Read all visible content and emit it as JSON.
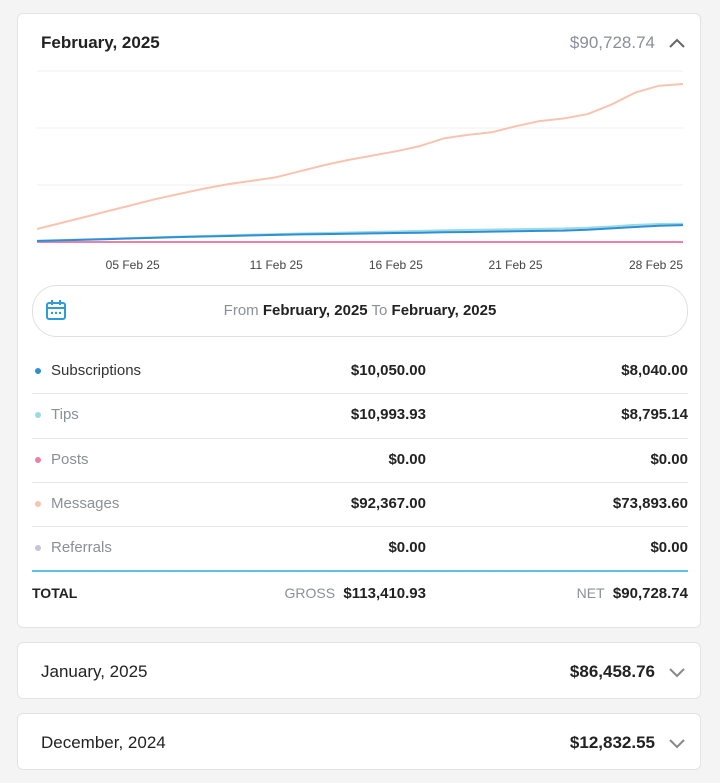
{
  "chart_data": {
    "type": "line",
    "categories": [
      null,
      null,
      null,
      null,
      "05 Feb 25",
      null,
      null,
      null,
      null,
      null,
      "11 Feb 25",
      null,
      null,
      null,
      null,
      "16 Feb 25",
      null,
      null,
      null,
      null,
      "21 Feb 25",
      null,
      null,
      null,
      null,
      null,
      null,
      "28 Feb 25"
    ],
    "series": [
      {
        "name": "Subscriptions",
        "color": "#2e8fd6",
        "values": [
          600,
          900,
          1300,
          1700,
          2100,
          2500,
          2900,
          3200,
          3500,
          3800,
          4100,
          4400,
          4600,
          4800,
          5000,
          5200,
          5400,
          5600,
          5800,
          6000,
          6200,
          6400,
          6600,
          7100,
          7900,
          8700,
          9400,
          9800
        ]
      },
      {
        "name": "Tips",
        "color": "#9adbe3",
        "values": [
          700,
          1100,
          1500,
          1900,
          2300,
          2700,
          3100,
          3500,
          3900,
          4300,
          4600,
          4900,
          5200,
          5500,
          5800,
          6100,
          6400,
          6700,
          7000,
          7200,
          7400,
          7600,
          7800,
          8200,
          9000,
          9900,
          10400,
          10600
        ]
      },
      {
        "name": "Posts",
        "color": "#ef7fa3",
        "values": [
          0,
          0,
          0,
          0,
          0,
          0,
          0,
          0,
          0,
          0,
          0,
          0,
          0,
          0,
          0,
          0,
          0,
          0,
          0,
          0,
          0,
          0,
          0,
          0,
          0,
          0,
          0,
          0
        ]
      },
      {
        "name": "Messages",
        "color": "#f8c4b0",
        "values": [
          7500,
          11000,
          14500,
          18000,
          21500,
          25000,
          28000,
          31000,
          33500,
          35500,
          37500,
          41000,
          44500,
          47500,
          50000,
          52500,
          55500,
          60000,
          62000,
          63500,
          67000,
          70000,
          71500,
          74000,
          79500,
          86500,
          90500,
          91500
        ]
      },
      {
        "name": "Referrals",
        "color": "#c5c3dd",
        "values": [
          0,
          0,
          0,
          0,
          0,
          0,
          0,
          0,
          0,
          0,
          0,
          0,
          0,
          0,
          0,
          0,
          0,
          0,
          0,
          0,
          0,
          0,
          0,
          0,
          0,
          0,
          0,
          0
        ]
      }
    ],
    "ylim": [
      0,
      99000
    ],
    "yticks": [
      0,
      33000,
      66000,
      99000
    ],
    "grid": true
  },
  "header": {
    "title": "February, 2025",
    "amount": "$90,728.74"
  },
  "range": {
    "from_label": "From",
    "from": "February, 2025",
    "to_label": "To",
    "to": "February, 2025"
  },
  "table": {
    "rows": [
      [
        "$10,050.00",
        "$8,040.00"
      ],
      [
        "$10,993.93",
        "$8,795.14"
      ],
      [
        "$0.00",
        "$0.00"
      ],
      [
        "$92,367.00",
        "$73,893.60"
      ],
      [
        "$0.00",
        "$0.00"
      ]
    ],
    "total": {
      "label": "TOTAL",
      "gross_label": "GROSS",
      "gross": "$113,410.93",
      "net_label": "NET",
      "net": "$90,728.74"
    }
  },
  "months": [
    {
      "title": "January, 2025",
      "amount": "$86,458.76"
    },
    {
      "title": "December, 2024",
      "amount": "$12,832.55"
    }
  ]
}
